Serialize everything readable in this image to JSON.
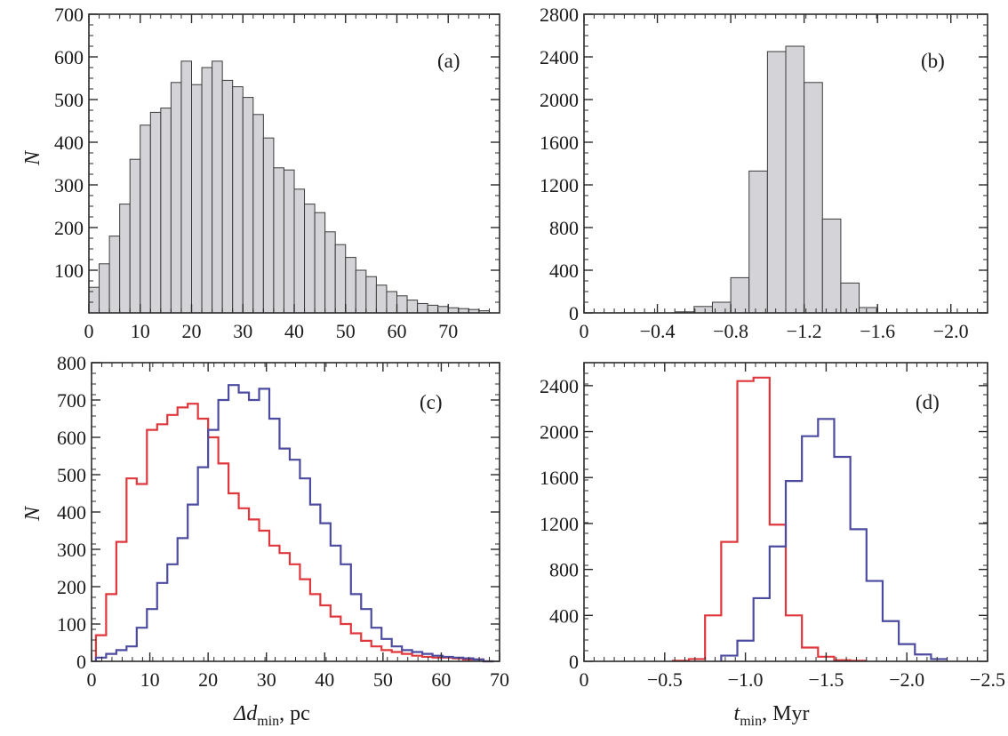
{
  "colors": {
    "hist_fill": "#d4d4d8",
    "hist_edge": "#3a3a3a",
    "red": "#e0373c",
    "blue": "#4c4ba0",
    "frame": "#2a2a2a"
  },
  "chart_data": [
    {
      "type": "histogram",
      "panel_label": "(a)",
      "ylabel": "N",
      "xlim": [
        0,
        80
      ],
      "ylim": [
        0,
        700
      ],
      "xticks": [
        0,
        10,
        20,
        30,
        40,
        50,
        60,
        70
      ],
      "yticks": [
        100,
        200,
        300,
        400,
        500,
        600,
        700
      ],
      "bin_width": 2,
      "bins_start": [
        0,
        2,
        4,
        6,
        8,
        10,
        12,
        14,
        16,
        18,
        20,
        22,
        24,
        26,
        28,
        30,
        32,
        34,
        36,
        38,
        40,
        42,
        44,
        46,
        48,
        50,
        52,
        54,
        56,
        58,
        60,
        62,
        64,
        66,
        68,
        70,
        72,
        74,
        76
      ],
      "values": [
        60,
        115,
        180,
        255,
        360,
        440,
        470,
        480,
        540,
        590,
        535,
        575,
        590,
        545,
        530,
        505,
        465,
        410,
        340,
        335,
        290,
        255,
        235,
        190,
        160,
        130,
        100,
        85,
        65,
        50,
        40,
        30,
        22,
        18,
        15,
        12,
        10,
        8,
        5
      ]
    },
    {
      "type": "histogram",
      "panel_label": "(b)",
      "xlim": [
        0,
        -2.2
      ],
      "ylim": [
        0,
        2800
      ],
      "xticks": [
        0,
        -0.4,
        -0.8,
        -1.2,
        -1.6,
        -2.0
      ],
      "xtick_labels": [
        "0",
        "−0.4",
        "−0.8",
        "−1.2",
        "−1.6",
        "−2.0"
      ],
      "yticks": [
        0,
        400,
        800,
        1200,
        1600,
        2000,
        2400,
        2800
      ],
      "bin_width": 0.1,
      "bins_start": [
        -0.5,
        -0.6,
        -0.7,
        -0.8,
        -0.9,
        -1.0,
        -1.1,
        -1.2,
        -1.3,
        -1.4,
        -1.5
      ],
      "values": [
        10,
        60,
        100,
        330,
        1330,
        2450,
        2500,
        2160,
        880,
        280,
        50
      ]
    },
    {
      "type": "step",
      "panel_label": "(c)",
      "xlabel": "Δd",
      "xlabel_sub": "min",
      "xlabel_unit": ", pc",
      "ylabel": "N",
      "xlim": [
        0,
        70
      ],
      "ylim": [
        0,
        800
      ],
      "xticks": [
        0,
        10,
        20,
        30,
        40,
        50,
        60,
        70
      ],
      "yticks": [
        0,
        100,
        200,
        300,
        400,
        500,
        600,
        700,
        800
      ],
      "bin_width": 1.75,
      "series": [
        {
          "color_key": "red",
          "x_start": [
            0.75,
            2.5,
            4.25,
            6.0,
            7.75,
            9.5,
            11.25,
            13.0,
            14.75,
            16.5,
            18.25,
            20.0,
            21.75,
            23.5,
            25.25,
            27.0,
            28.75,
            30.5,
            32.25,
            34.0,
            35.75,
            37.5,
            39.25,
            41.0,
            42.75,
            44.5,
            46.25,
            48.0,
            49.75,
            51.5,
            53.25,
            55.0,
            56.75,
            58.5,
            60.25,
            62.0,
            63.75,
            65.5,
            67.25
          ],
          "values": [
            70,
            180,
            320,
            490,
            475,
            620,
            635,
            660,
            680,
            690,
            650,
            600,
            530,
            450,
            410,
            380,
            350,
            310,
            290,
            260,
            220,
            180,
            150,
            120,
            100,
            75,
            55,
            40,
            30,
            25,
            20,
            15,
            12,
            10,
            10,
            8,
            5,
            5,
            0
          ]
        },
        {
          "color_key": "blue",
          "x_start": [
            0.75,
            2.5,
            4.25,
            6.0,
            7.75,
            9.5,
            11.25,
            13.0,
            14.75,
            16.5,
            18.25,
            20.0,
            21.75,
            23.5,
            25.25,
            27.0,
            28.75,
            30.5,
            32.25,
            34.0,
            35.75,
            37.5,
            39.25,
            41.0,
            42.75,
            44.5,
            46.25,
            48.0,
            49.75,
            51.5,
            53.25,
            55.0,
            56.75,
            58.5,
            60.25,
            62.0,
            63.75,
            65.5,
            67.25
          ],
          "values": [
            10,
            20,
            30,
            40,
            90,
            140,
            210,
            260,
            330,
            420,
            520,
            620,
            700,
            740,
            720,
            700,
            730,
            650,
            570,
            540,
            490,
            420,
            370,
            310,
            260,
            180,
            140,
            90,
            60,
            40,
            30,
            25,
            20,
            15,
            12,
            10,
            8,
            5,
            0
          ]
        }
      ]
    },
    {
      "type": "step",
      "panel_label": "(d)",
      "xlabel": "t",
      "xlabel_sub": "min",
      "xlabel_unit": ", Myr",
      "xlim": [
        0,
        -2.5
      ],
      "ylim": [
        0,
        2600
      ],
      "xticks": [
        0,
        -0.5,
        -1.0,
        -1.5,
        -2.0,
        -2.5
      ],
      "xtick_labels": [
        "0",
        "−0.5",
        "−1.0",
        "−1.5",
        "−2.0",
        "−2.5"
      ],
      "yticks": [
        0,
        400,
        800,
        1200,
        1600,
        2000,
        2400
      ],
      "bin_width": 0.1,
      "series": [
        {
          "color_key": "red",
          "x_start": [
            -0.55,
            -0.65,
            -0.75,
            -0.85,
            -0.95,
            -1.05,
            -1.15,
            -1.25,
            -1.35,
            -1.45,
            -1.55,
            -1.65
          ],
          "values": [
            5,
            20,
            400,
            1040,
            2440,
            2470,
            1190,
            400,
            120,
            40,
            10,
            5
          ]
        },
        {
          "color_key": "blue",
          "x_start": [
            -0.85,
            -0.95,
            -1.05,
            -1.15,
            -1.25,
            -1.35,
            -1.45,
            -1.55,
            -1.65,
            -1.75,
            -1.85,
            -1.95,
            -2.05,
            -2.15
          ],
          "values": [
            50,
            180,
            550,
            1000,
            1570,
            1960,
            2110,
            1780,
            1150,
            700,
            350,
            150,
            60,
            20
          ]
        }
      ]
    }
  ]
}
